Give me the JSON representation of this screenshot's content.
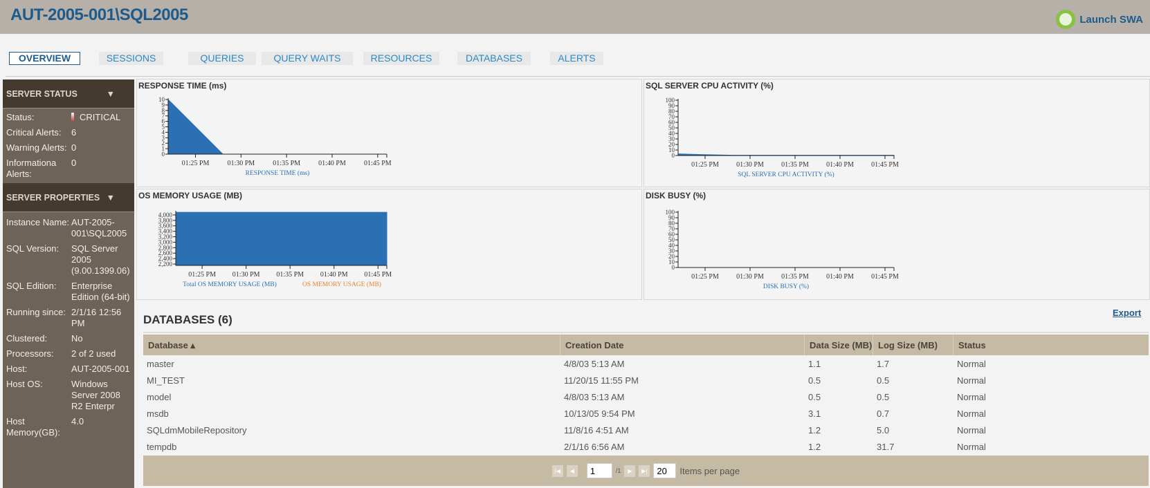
{
  "header": {
    "title": "AUT-2005-001\\SQL2005",
    "launch_label": "Launch SWA",
    "launch_icon": "swa-pulse-icon"
  },
  "tabs": [
    {
      "label": "OVERVIEW",
      "active": true
    },
    {
      "label": "SESSIONS"
    },
    {
      "label": "QUERIES"
    },
    {
      "label": "QUERY WAITS"
    },
    {
      "label": "RESOURCES"
    },
    {
      "label": "DATABASES"
    },
    {
      "label": "ALERTS"
    }
  ],
  "sidebar": {
    "server_status": {
      "title": "SERVER STATUS",
      "rows": [
        {
          "label": "Status:",
          "value": "CRITICAL"
        },
        {
          "label": "Critical Alerts:",
          "value": "6"
        },
        {
          "label": "Warning Alerts:",
          "value": "0"
        },
        {
          "label": "Informationa Alerts:",
          "value": "0"
        }
      ]
    },
    "server_properties": {
      "title": "SERVER PROPERTIES",
      "rows": [
        {
          "label": "Instance Name:",
          "value": "AUT-2005-001\\SQL2005"
        },
        {
          "label": "SQL Version:",
          "value": "SQL Server 2005 (9.00.1399.06)"
        },
        {
          "label": "SQL Edition:",
          "value": "Enterprise Edition (64-bit)"
        },
        {
          "label": "Running since:",
          "value": "2/1/16 12:56 PM"
        },
        {
          "label": "Clustered:",
          "value": "No"
        },
        {
          "label": "Processors:",
          "value": "2 of 2 used"
        },
        {
          "label": "Host:",
          "value": "AUT-2005-001"
        },
        {
          "label": "Host OS:",
          "value": "Windows Server 2008 R2 Enterpr"
        },
        {
          "label": "Host Memory(GB):",
          "value": "4.0"
        }
      ]
    }
  },
  "chart_data": [
    {
      "type": "area",
      "title": "RESPONSE TIME (ms)",
      "xlim": [
        "01:22",
        "01:46"
      ],
      "xticks": [
        "01:25 PM",
        "01:30 PM",
        "01:35 PM",
        "01:40 PM",
        "01:45 PM"
      ],
      "ylim": [
        0,
        10
      ],
      "yticks": [
        "0",
        "1",
        "2",
        "3",
        "4",
        "5",
        "6",
        "7",
        "8",
        "9",
        "10"
      ],
      "series": [
        {
          "name": "RESPONSE TIME (ms)",
          "color": "#2a70b3",
          "x": [
            "01:22",
            "01:28"
          ],
          "y": [
            10,
            0
          ]
        }
      ]
    },
    {
      "type": "area",
      "title": "SQL SERVER CPU ACTIVITY (%)",
      "xlim": [
        "01:22",
        "01:46"
      ],
      "xticks": [
        "01:25 PM",
        "01:30 PM",
        "01:35 PM",
        "01:40 PM",
        "01:45 PM"
      ],
      "ylim": [
        0,
        100
      ],
      "yticks": [
        "0",
        "10",
        "20",
        "30",
        "40",
        "50",
        "60",
        "70",
        "80",
        "90",
        "100"
      ],
      "series": [
        {
          "name": "SQL SERVER CPU ACTIVITY (%)",
          "color": "#2a70b3",
          "x": [
            "01:22",
            "01:25",
            "01:28",
            "01:46"
          ],
          "y": [
            3,
            1.5,
            0.5,
            0.5
          ]
        }
      ]
    },
    {
      "type": "area",
      "title": "OS MEMORY USAGE (MB)",
      "xlim": [
        "01:22",
        "01:46"
      ],
      "xticks": [
        "01:25 PM",
        "01:30 PM",
        "01:35 PM",
        "01:40 PM",
        "01:45 PM"
      ],
      "ylim": [
        2150,
        4100
      ],
      "yticks": [
        "2,200",
        "2,400",
        "2,600",
        "2,800",
        "3,000",
        "3,200",
        "3,400",
        "3,600",
        "3,800",
        "4,000"
      ],
      "series": [
        {
          "name": "Total OS MEMORY USAGE (MB)",
          "color": "#2a70b3",
          "x": [
            "01:22",
            "01:46"
          ],
          "y": [
            4096,
            4096
          ]
        },
        {
          "name": "OS MEMORY USAGE (MB)",
          "color": "#e8822e",
          "x": [],
          "y": []
        }
      ]
    },
    {
      "type": "area",
      "title": "DISK BUSY (%)",
      "xlim": [
        "01:22",
        "01:46"
      ],
      "xticks": [
        "01:25 PM",
        "01:30 PM",
        "01:35 PM",
        "01:40 PM",
        "01:45 PM"
      ],
      "ylim": [
        0,
        100
      ],
      "yticks": [
        "0",
        "10",
        "20",
        "30",
        "40",
        "50",
        "60",
        "70",
        "80",
        "90",
        "100"
      ],
      "series": [
        {
          "name": "DISK BUSY (%)",
          "color": "#2a70b3",
          "x": [],
          "y": []
        }
      ]
    }
  ],
  "databases": {
    "title": "DATABASES (6)",
    "export_label": "Export",
    "columns": [
      "Database ▴",
      "Creation Date",
      "Data Size (MB)",
      "Log Size (MB)",
      "Status"
    ],
    "rows": [
      [
        "master",
        "4/8/03 5:13 AM",
        "1.1",
        "1.7",
        "Normal"
      ],
      [
        "MI_TEST",
        "11/20/15 11:55 PM",
        "0.5",
        "0.5",
        "Normal"
      ],
      [
        "model",
        "4/8/03 5:13 AM",
        "0.5",
        "0.5",
        "Normal"
      ],
      [
        "msdb",
        "10/13/05 9:54 PM",
        "3.1",
        "0.7",
        "Normal"
      ],
      [
        "SQLdmMobileRepository",
        "11/8/16 4:51 AM",
        "1.2",
        "5.0",
        "Normal"
      ],
      [
        "tempdb",
        "2/1/16 6:56 AM",
        "1.2",
        "31.7",
        "Normal"
      ]
    ],
    "pager": {
      "page": "1",
      "of": "/1",
      "page_size": "20",
      "items_label": "Items per page"
    }
  }
}
